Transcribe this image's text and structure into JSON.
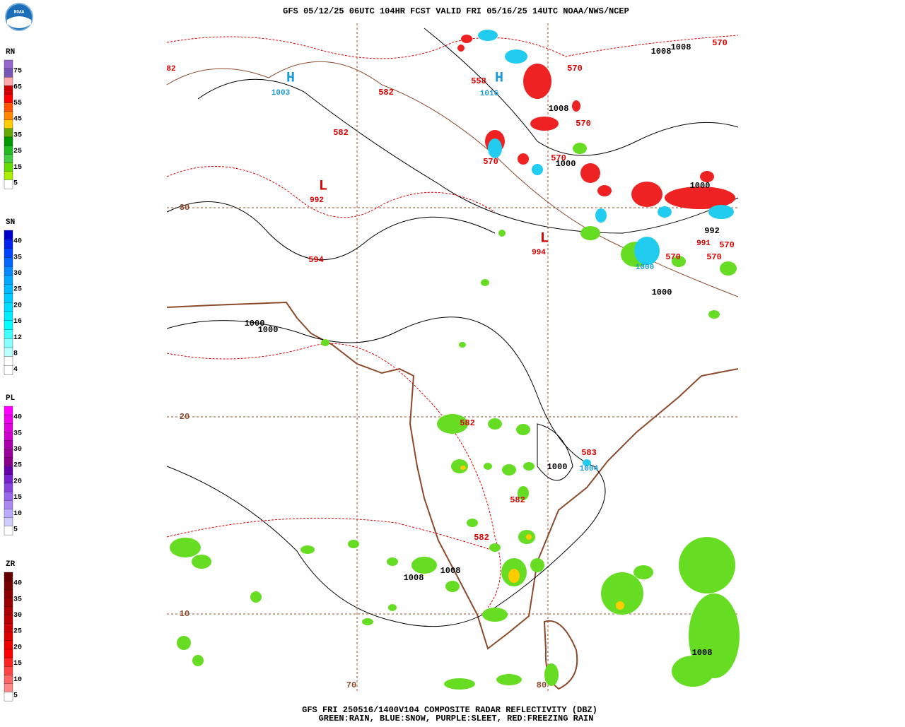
{
  "header": {
    "title": "GFS 05/12/25 06UTC 104HR FCST VALID FRI 05/16/25 14UTC NOAA/NWS/NCEP",
    "logo": "NOAA"
  },
  "legends": [
    {
      "label": "RN",
      "ticks": [
        "75",
        "65",
        "55",
        "45",
        "35",
        "25",
        "15",
        "5"
      ]
    },
    {
      "label": "SN",
      "ticks": [
        "40",
        "35",
        "30",
        "25",
        "20",
        "16",
        "12",
        "8",
        "4"
      ]
    },
    {
      "label": "PL",
      "ticks": [
        "40",
        "35",
        "30",
        "25",
        "20",
        "15",
        "10",
        "5"
      ]
    },
    {
      "label": "ZR",
      "ticks": [
        "40",
        "35",
        "30",
        "25",
        "20",
        "15",
        "10",
        "5"
      ]
    }
  ],
  "map_labels": [
    "82",
    "H",
    "1003",
    "582",
    "582",
    "L",
    "992",
    "594",
    "558",
    "H",
    "1016",
    "1008",
    "1008",
    "570",
    "570",
    "1008",
    "570",
    "570",
    "570",
    "1000",
    "L",
    "994",
    "1000",
    "992",
    "991",
    "570",
    "570",
    "570",
    "1000",
    "1000",
    "1000",
    "1000",
    "582",
    "583",
    "1000",
    "1004",
    "582",
    "582",
    "1008",
    "1008",
    "1008"
  ],
  "grid_labels": [
    "30",
    "20",
    "10",
    "70",
    "80"
  ],
  "footer": {
    "line1": "GFS FRI 250516/1400V104 COMPOSITE RADAR REFLECTIVITY (DBZ)",
    "line2": "GREEN:RAIN, BLUE:SNOW, PURPLE:SLEET, RED:FREEZING RAIN"
  }
}
